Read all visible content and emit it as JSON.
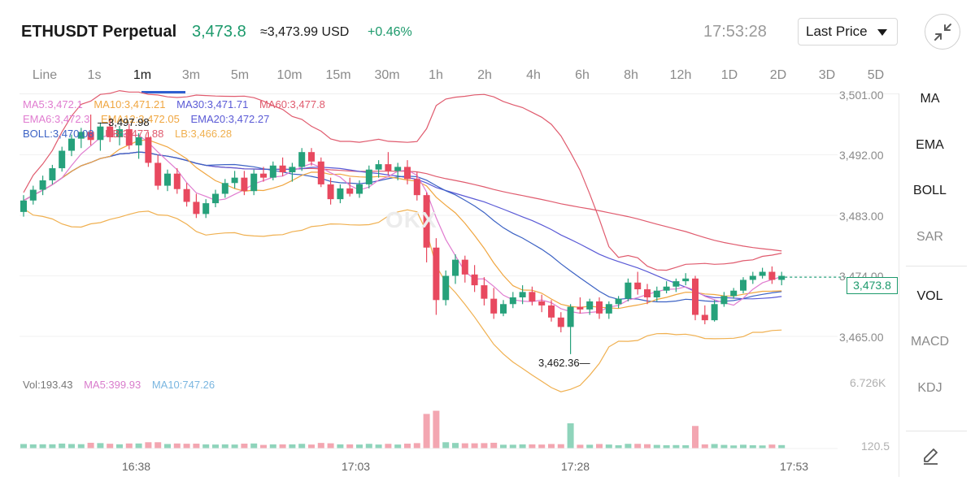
{
  "header": {
    "pair": "ETHUSDT Perpetual",
    "price": "3,473.8",
    "usd_price": "≈3,473.99 USD",
    "change": "+0.46%",
    "time": "17:53:28",
    "price_type": "Last Price"
  },
  "intervals": [
    "Line",
    "1s",
    "1m",
    "3m",
    "5m",
    "10m",
    "15m",
    "30m",
    "1h",
    "2h",
    "4h",
    "6h",
    "8h",
    "12h",
    "1D",
    "2D",
    "3D",
    "5D"
  ],
  "active_interval": "1m",
  "indicators": {
    "line1": [
      {
        "text": "MA5:3,472.1",
        "color": "#e07cd0"
      },
      {
        "text": "MA10:3,471.21",
        "color": "#f0a640"
      },
      {
        "text": "MA30:3,471.71",
        "color": "#5a5ad6"
      },
      {
        "text": "MA60:3,477.8",
        "color": "#e05b6e"
      }
    ],
    "line2": [
      {
        "text": "EMA6:3,472.3",
        "color": "#e07cd0"
      },
      {
        "text": "EMA12:3,472.05",
        "color": "#f0a640"
      },
      {
        "text": "EMA20:3,472.27",
        "color": "#5a5ad6"
      }
    ],
    "line3": [
      {
        "text": "BOLL:3,470.08",
        "color": "#3c62c4"
      },
      {
        "text": "UB:3,477.88",
        "color": "#e05b6e"
      },
      {
        "text": "LB:3,466.28",
        "color": "#f0b050"
      }
    ]
  },
  "annotations": {
    "high": "3,497.98",
    "low": "3,462.36"
  },
  "watermark": "OKX",
  "right_menu": [
    "MA",
    "EMA",
    "BOLL",
    "SAR",
    "VOL",
    "MACD",
    "KDJ"
  ],
  "price_axis": {
    "labels": [
      "3,501.00",
      "3,492.00",
      "3,483.00",
      "3,474.00",
      "3,465.00"
    ],
    "current": "3,473.8"
  },
  "volume": {
    "vol": "Vol:193.43",
    "ma5": "MA5:399.93",
    "ma10": "MA10:747.26",
    "axis_top": "6.726K",
    "axis_bottom": "120.5"
  },
  "time_axis": [
    "16:38",
    "17:03",
    "17:28",
    "17:53"
  ],
  "colors": {
    "up": "#26a17b",
    "down": "#e8495f",
    "accent": "#2f5fd0"
  },
  "chart_data": {
    "type": "candlestick",
    "interval": "1m",
    "x": [
      "16:38",
      "17:03",
      "17:28",
      "17:53"
    ],
    "ylim": [
      3460,
      3502
    ],
    "last_price": 3473.8,
    "high": 3497.98,
    "low": 3462.36,
    "candles": [
      [
        3483.5,
        3486.0,
        3482.8,
        3485.2
      ],
      [
        3485.2,
        3487.4,
        3484.6,
        3486.8
      ],
      [
        3486.8,
        3488.9,
        3486.0,
        3488.2
      ],
      [
        3488.2,
        3490.5,
        3487.6,
        3490.0
      ],
      [
        3490.0,
        3493.2,
        3489.5,
        3492.6
      ],
      [
        3492.6,
        3495.0,
        3491.8,
        3494.4
      ],
      [
        3494.4,
        3496.0,
        3493.0,
        3495.4
      ],
      [
        3495.4,
        3497.98,
        3493.4,
        3494.2
      ],
      [
        3494.2,
        3496.8,
        3492.6,
        3496.2
      ],
      [
        3496.2,
        3497.4,
        3493.9,
        3494.6
      ],
      [
        3494.6,
        3496.3,
        3493.4,
        3495.8
      ],
      [
        3495.8,
        3496.6,
        3492.8,
        3493.4
      ],
      [
        3493.4,
        3495.2,
        3491.4,
        3494.6
      ],
      [
        3494.6,
        3495.4,
        3490.2,
        3490.8
      ],
      [
        3490.8,
        3492.0,
        3486.8,
        3487.4
      ],
      [
        3487.4,
        3489.8,
        3486.6,
        3489.2
      ],
      [
        3489.2,
        3490.0,
        3486.2,
        3486.9
      ],
      [
        3486.9,
        3487.8,
        3484.3,
        3485.0
      ],
      [
        3485.0,
        3486.2,
        3482.6,
        3483.2
      ],
      [
        3483.2,
        3485.4,
        3482.6,
        3484.8
      ],
      [
        3484.8,
        3486.8,
        3484.2,
        3486.2
      ],
      [
        3486.2,
        3488.4,
        3485.6,
        3487.8
      ],
      [
        3487.8,
        3489.6,
        3487.0,
        3488.6
      ],
      [
        3488.6,
        3489.6,
        3486.0,
        3486.6
      ],
      [
        3486.6,
        3489.8,
        3486.0,
        3489.2
      ],
      [
        3489.2,
        3490.2,
        3488.0,
        3488.6
      ],
      [
        3488.6,
        3491.0,
        3488.2,
        3490.4
      ],
      [
        3490.4,
        3491.6,
        3488.8,
        3489.4
      ],
      [
        3489.4,
        3490.8,
        3488.0,
        3490.2
      ],
      [
        3490.2,
        3493.0,
        3489.6,
        3492.4
      ],
      [
        3492.4,
        3493.0,
        3490.4,
        3491.0
      ],
      [
        3491.0,
        3491.6,
        3487.2,
        3487.6
      ],
      [
        3487.6,
        3488.6,
        3484.6,
        3485.4
      ],
      [
        3485.4,
        3487.6,
        3484.8,
        3487.0
      ],
      [
        3487.0,
        3488.6,
        3485.8,
        3486.2
      ],
      [
        3486.2,
        3488.2,
        3485.6,
        3487.6
      ],
      [
        3487.6,
        3490.4,
        3487.0,
        3489.8
      ],
      [
        3489.8,
        3491.2,
        3488.6,
        3490.6
      ],
      [
        3490.6,
        3492.4,
        3489.0,
        3489.6
      ],
      [
        3489.6,
        3490.8,
        3488.2,
        3490.2
      ],
      [
        3490.2,
        3491.2,
        3487.6,
        3488.4
      ],
      [
        3488.4,
        3489.4,
        3485.2,
        3486.0
      ],
      [
        3486.0,
        3486.4,
        3476.0,
        3478.2
      ],
      [
        3478.2,
        3479.6,
        3468.2,
        3470.4
      ],
      [
        3470.4,
        3474.8,
        3469.6,
        3474.0
      ],
      [
        3474.0,
        3477.2,
        3472.8,
        3476.4
      ],
      [
        3476.4,
        3477.0,
        3473.0,
        3474.2
      ],
      [
        3474.2,
        3475.6,
        3471.6,
        3472.6
      ],
      [
        3472.6,
        3473.8,
        3469.6,
        3470.6
      ],
      [
        3470.6,
        3472.2,
        3467.6,
        3468.4
      ],
      [
        3468.4,
        3470.4,
        3468.0,
        3469.8
      ],
      [
        3469.8,
        3471.6,
        3469.2,
        3470.8
      ],
      [
        3470.8,
        3472.6,
        3469.8,
        3471.6
      ],
      [
        3471.6,
        3472.4,
        3469.6,
        3470.2
      ],
      [
        3470.2,
        3471.2,
        3468.6,
        3469.6
      ],
      [
        3469.6,
        3470.4,
        3467.2,
        3467.8
      ],
      [
        3467.8,
        3468.6,
        3465.6,
        3466.4
      ],
      [
        3466.4,
        3469.8,
        3462.36,
        3469.4
      ],
      [
        3469.4,
        3470.8,
        3468.4,
        3469.0
      ],
      [
        3469.0,
        3470.6,
        3468.2,
        3470.2
      ],
      [
        3470.2,
        3470.8,
        3467.6,
        3468.4
      ],
      [
        3468.4,
        3470.2,
        3467.6,
        3469.8
      ],
      [
        3469.8,
        3471.0,
        3469.2,
        3470.6
      ],
      [
        3470.6,
        3473.6,
        3470.2,
        3473.0
      ],
      [
        3473.0,
        3474.6,
        3471.2,
        3472.0
      ],
      [
        3472.0,
        3472.8,
        3469.8,
        3470.8
      ],
      [
        3470.8,
        3472.4,
        3470.2,
        3471.8
      ],
      [
        3471.8,
        3473.2,
        3471.4,
        3472.4
      ],
      [
        3472.4,
        3473.6,
        3471.6,
        3473.2
      ],
      [
        3473.2,
        3474.4,
        3472.6,
        3473.6
      ],
      [
        3473.6,
        3474.0,
        3467.4,
        3468.2
      ],
      [
        3468.2,
        3469.6,
        3466.8,
        3467.4
      ],
      [
        3467.4,
        3470.4,
        3467.2,
        3469.8
      ],
      [
        3469.8,
        3471.6,
        3469.4,
        3471.0
      ],
      [
        3471.0,
        3472.2,
        3470.6,
        3471.8
      ],
      [
        3471.8,
        3473.8,
        3471.4,
        3473.4
      ],
      [
        3473.4,
        3474.6,
        3472.8,
        3474.0
      ],
      [
        3474.0,
        3475.2,
        3473.6,
        3474.6
      ],
      [
        3474.6,
        3475.4,
        3472.8,
        3473.4
      ],
      [
        3473.4,
        3474.6,
        3472.6,
        3474.0
      ]
    ]
  }
}
